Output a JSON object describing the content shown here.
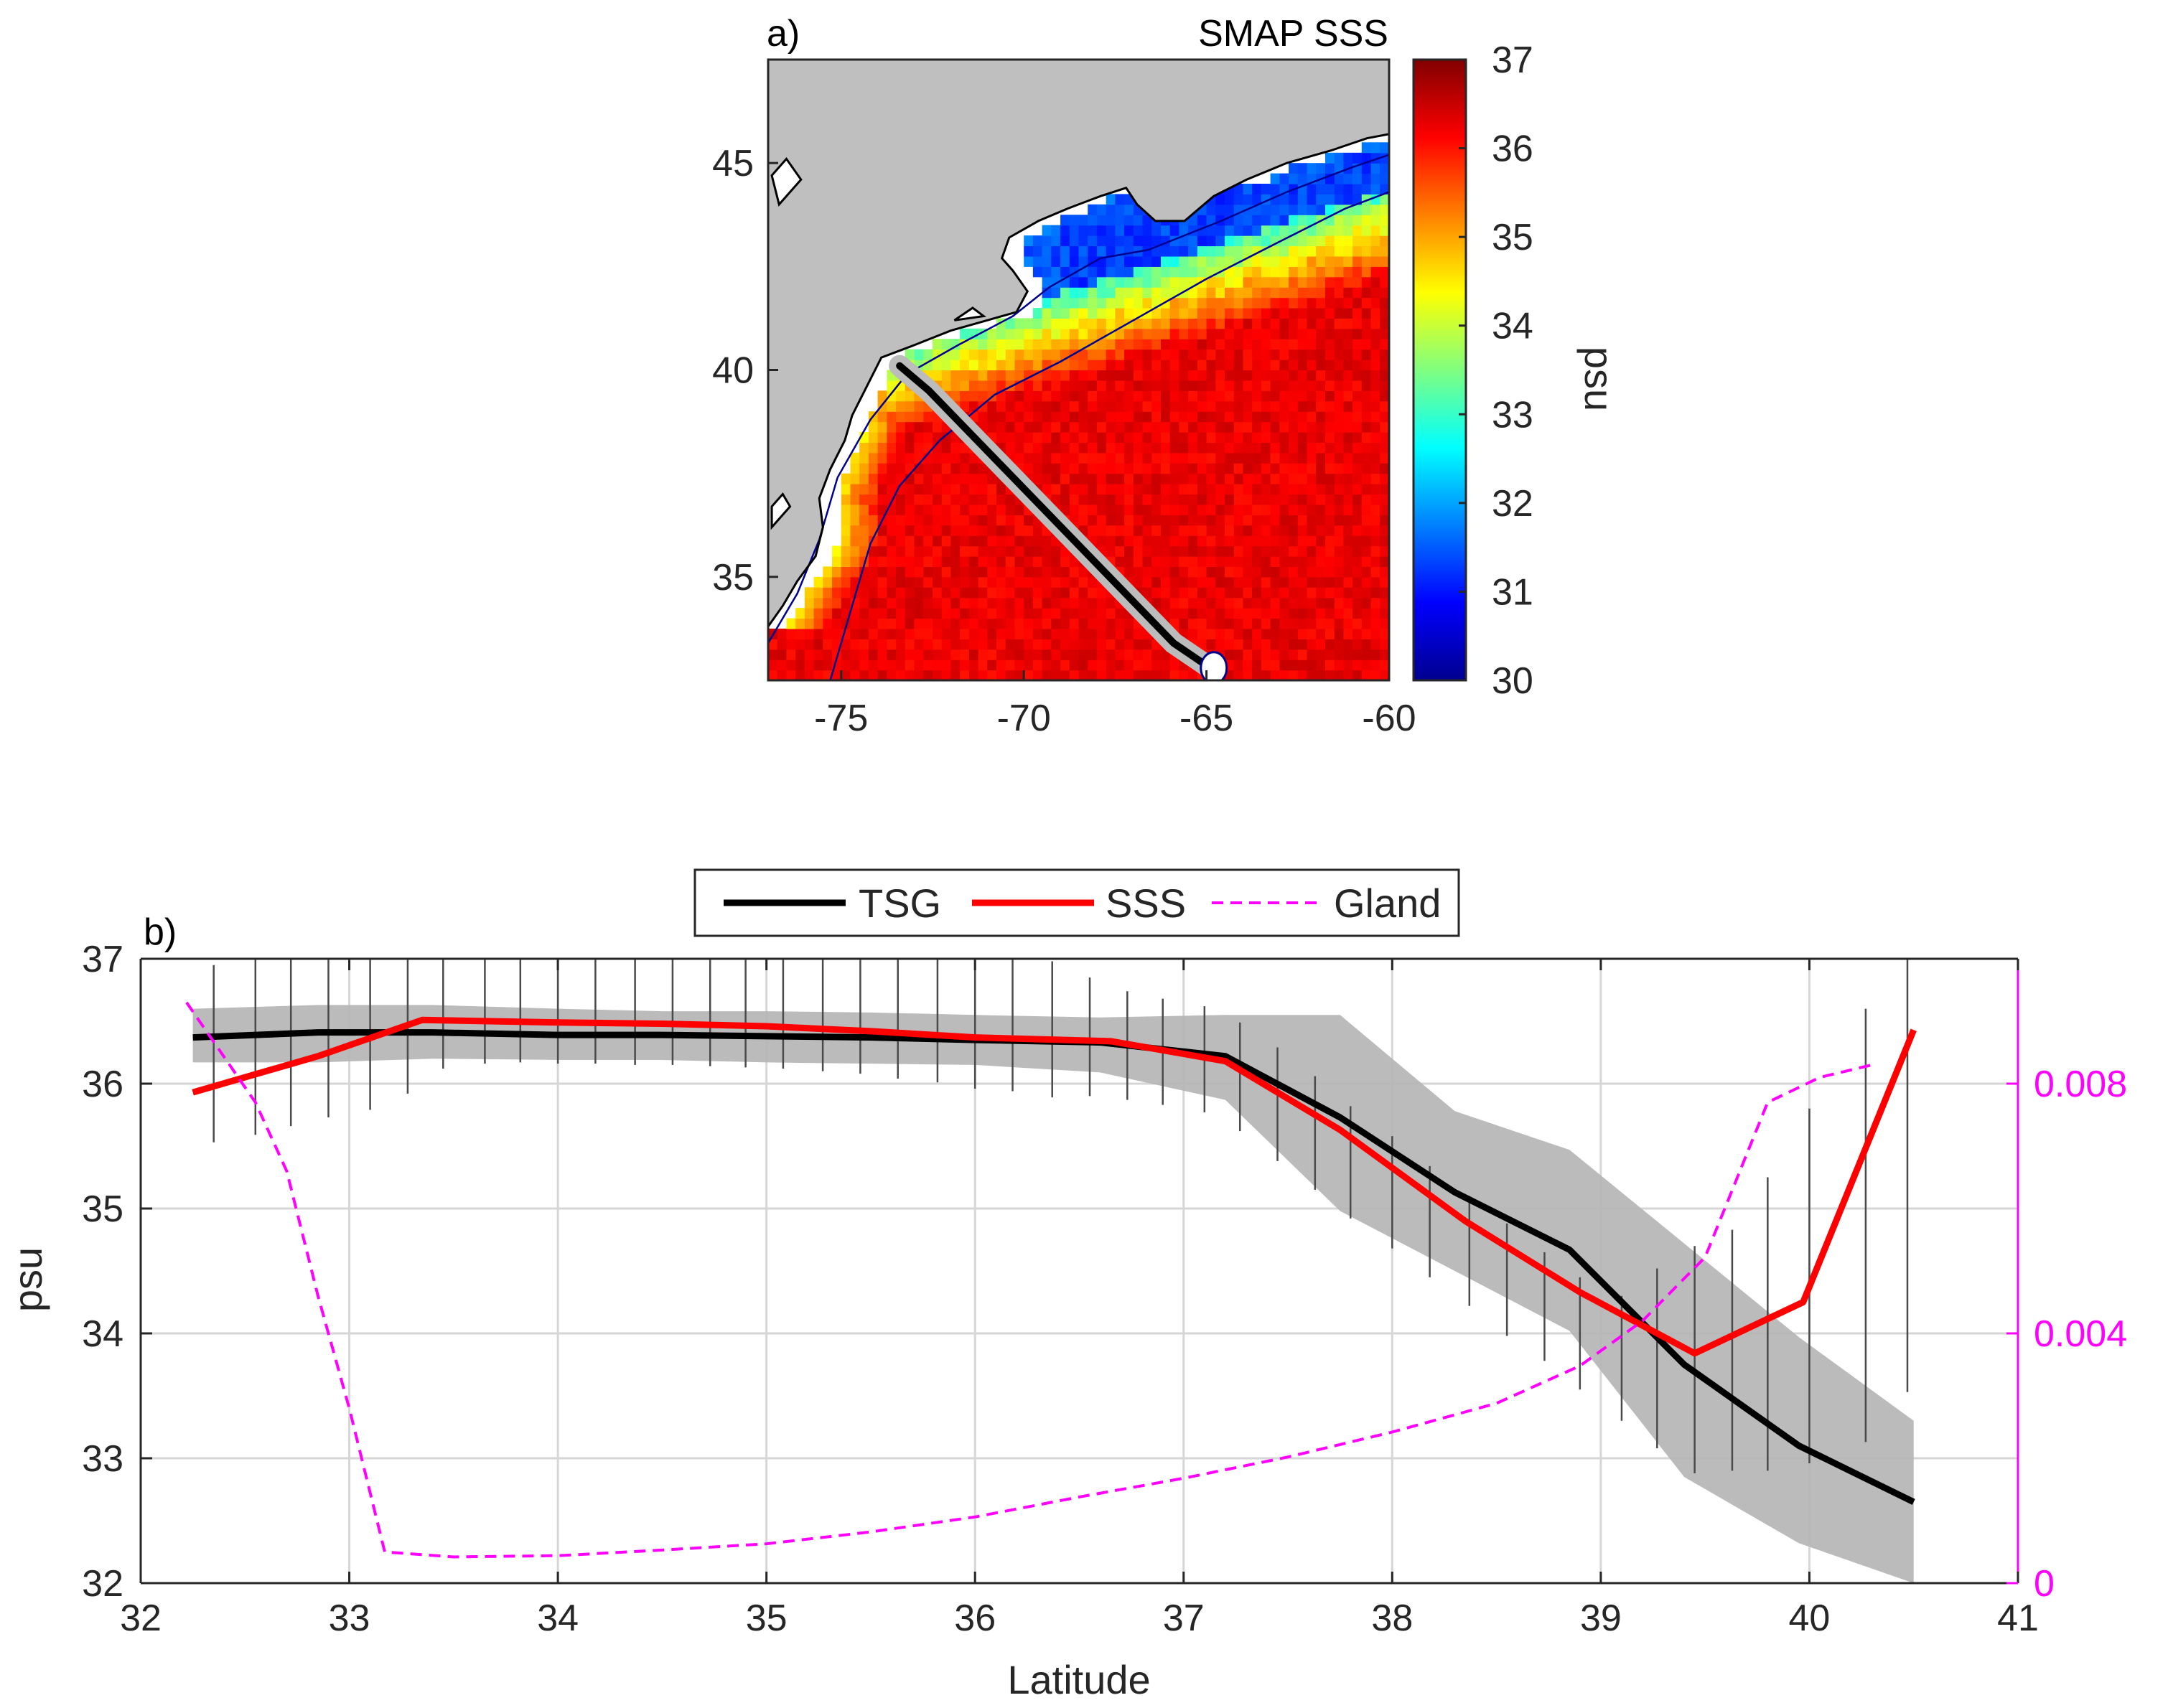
{
  "chart_data": [
    {
      "type": "heatmap",
      "panel_label": "a)",
      "title": "SMAP SSS",
      "xticks": [
        -75,
        -70,
        -65,
        -60
      ],
      "yticks": [
        35,
        40,
        45
      ],
      "xlim": [
        -77,
        -60
      ],
      "ylim": [
        32.5,
        47.5
      ],
      "colorbar": {
        "label": "psu",
        "ticks": [
          30,
          31,
          32,
          33,
          34,
          35,
          36,
          37
        ],
        "range": [
          30,
          37
        ],
        "colormap": [
          "#00008f",
          "#0000ff",
          "#0080ff",
          "#00ffff",
          "#80ff80",
          "#ffff00",
          "#ff8000",
          "#ff0000",
          "#800000"
        ]
      },
      "transect": {
        "lon": [
          -73.4,
          -72.6,
          -65.9,
          -64.9
        ],
        "lat": [
          40.1,
          39.5,
          33.4,
          32.8
        ]
      },
      "land_color": "#bfbfbf"
    },
    {
      "type": "line",
      "panel_label": "b)",
      "xlabel": "Latitude",
      "ylabel": "psu",
      "xlim": [
        32,
        41
      ],
      "ylim": [
        32,
        37
      ],
      "xticks": [
        32,
        33,
        34,
        35,
        36,
        37,
        38,
        39,
        40,
        41
      ],
      "yticks": [
        32,
        33,
        34,
        35,
        36,
        37
      ],
      "y2lim": [
        0,
        0.01
      ],
      "y2ticks": [
        0,
        0.004,
        0.008
      ],
      "y2ticklabels": [
        "0",
        "0.004",
        "0.008"
      ],
      "legend": [
        "TSG",
        "SSS",
        "Gland"
      ],
      "series": [
        {
          "name": "TSG",
          "color": "#000000",
          "x": [
            32.25,
            32.85,
            33.4,
            34.0,
            34.5,
            35.0,
            35.5,
            36.0,
            36.6,
            37.2,
            37.75,
            38.3,
            38.85,
            39.4,
            39.95,
            40.5
          ],
          "y": [
            36.37,
            36.41,
            36.41,
            36.39,
            36.39,
            36.38,
            36.37,
            36.35,
            36.33,
            36.22,
            35.73,
            35.13,
            34.67,
            33.75,
            33.1,
            32.65
          ]
        },
        {
          "name": "SSS",
          "color": "#ff0000",
          "x": [
            32.25,
            32.85,
            33.35,
            34.0,
            34.5,
            35.0,
            35.5,
            36.0,
            36.65,
            37.2,
            37.75,
            38.35,
            38.9,
            39.45,
            39.97,
            40.5
          ],
          "y": [
            35.93,
            36.22,
            36.51,
            36.49,
            36.48,
            36.46,
            36.42,
            36.37,
            36.34,
            36.18,
            35.63,
            34.9,
            34.33,
            33.84,
            34.25,
            36.43
          ]
        },
        {
          "name": "Gland",
          "axis": "right",
          "style": "dashed",
          "color": "#ff00ff",
          "x": [
            32.22,
            32.55,
            32.7,
            32.85,
            33.0,
            33.17,
            33.5,
            34.0,
            34.5,
            35.0,
            35.5,
            36.0,
            36.5,
            37.0,
            37.5,
            38.0,
            38.5,
            38.9,
            39.2,
            39.5,
            39.8,
            40.05,
            40.3
          ],
          "y": [
            0.0093,
            0.0077,
            0.0066,
            0.0046,
            0.0028,
            0.0005,
            0.00042,
            0.00044,
            0.00053,
            0.00063,
            0.00082,
            0.00106,
            0.00138,
            0.00168,
            0.00202,
            0.00242,
            0.00288,
            0.00348,
            0.0042,
            0.00522,
            0.0077,
            0.0081,
            0.0083
          ]
        }
      ],
      "errorbars": {
        "x": [
          32.35,
          32.55,
          32.72,
          32.9,
          33.1,
          33.28,
          33.45,
          33.65,
          33.82,
          34.0,
          34.18,
          34.37,
          34.55,
          34.73,
          34.9,
          35.08,
          35.27,
          35.45,
          35.63,
          35.82,
          36.0,
          36.18,
          36.37,
          36.55,
          36.73,
          36.9,
          37.1,
          37.27,
          37.45,
          37.63,
          37.8,
          38.0,
          38.18,
          38.37,
          38.55,
          38.73,
          38.9,
          39.1,
          39.27,
          39.45,
          39.63,
          39.8,
          40.0,
          40.27,
          40.47
        ],
        "low": [
          35.53,
          35.59,
          35.66,
          35.73,
          35.79,
          35.92,
          36.12,
          36.16,
          36.17,
          36.16,
          36.16,
          36.15,
          36.15,
          36.14,
          36.13,
          36.12,
          36.1,
          36.08,
          36.04,
          36.01,
          35.96,
          35.94,
          35.89,
          35.9,
          35.87,
          35.83,
          35.77,
          35.62,
          35.38,
          35.15,
          34.92,
          34.68,
          34.45,
          34.22,
          33.98,
          33.78,
          33.55,
          33.3,
          33.08,
          32.88,
          32.9,
          32.9,
          32.96,
          33.13,
          33.53
        ],
        "high": [
          36.95,
          37.0,
          37.05,
          37.1,
          37.15,
          37.15,
          37.15,
          37.15,
          37.15,
          37.15,
          37.15,
          37.15,
          37.15,
          37.15,
          37.15,
          37.15,
          37.15,
          37.15,
          37.15,
          37.15,
          37.15,
          37.15,
          36.98,
          36.85,
          36.74,
          36.68,
          36.62,
          36.49,
          36.29,
          36.06,
          35.82,
          35.58,
          35.34,
          35.1,
          34.88,
          34.65,
          34.45,
          34.3,
          34.52,
          34.7,
          34.83,
          35.25,
          35.8,
          36.6,
          37.0
        ]
      },
      "band": {
        "x": [
          32.25,
          32.85,
          33.4,
          34.0,
          34.5,
          35.0,
          35.5,
          36.0,
          36.6,
          37.2,
          37.75,
          38.3,
          38.85,
          39.4,
          39.95,
          40.5
        ],
        "low": [
          36.17,
          36.17,
          36.2,
          36.19,
          36.19,
          36.17,
          36.16,
          36.15,
          36.09,
          35.87,
          34.98,
          34.5,
          34.02,
          32.85,
          32.32,
          32.0
        ],
        "high": [
          36.6,
          36.63,
          36.63,
          36.6,
          36.58,
          36.58,
          36.57,
          36.55,
          36.53,
          36.55,
          36.55,
          35.78,
          35.47,
          34.72,
          33.97,
          33.3
        ]
      }
    }
  ]
}
